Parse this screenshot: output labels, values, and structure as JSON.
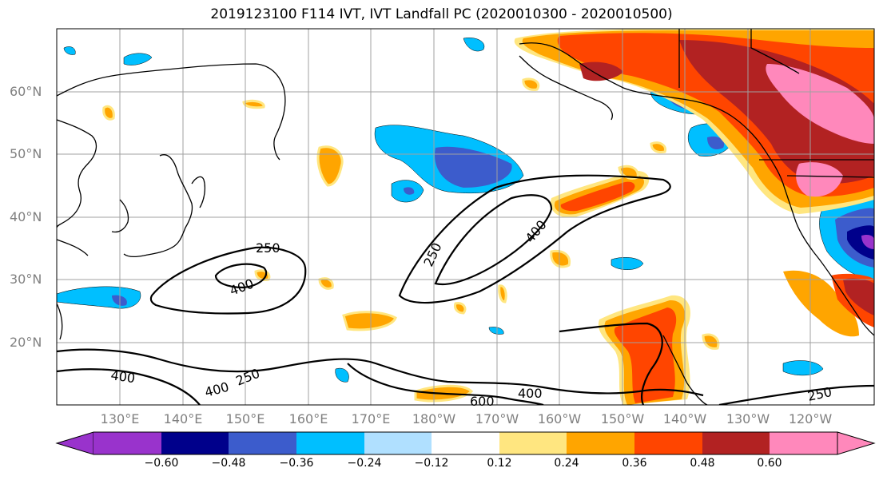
{
  "title": "2019123100 F114 IVT, IVT Landfall PC (2020010300 - 2020010500)",
  "lat_labels": [
    "60°N",
    "50°N",
    "40°N",
    "30°N",
    "20°N"
  ],
  "lon_labels": [
    "130°E",
    "140°E",
    "150°E",
    "160°E",
    "170°E",
    "180°W",
    "170°W",
    "160°W",
    "150°W",
    "140°W",
    "130°W",
    "120°W"
  ],
  "colorbar": {
    "levels": [
      "−0.60",
      "−0.48",
      "−0.36",
      "−0.24",
      "−0.12",
      "0.12",
      "0.24",
      "0.36",
      "0.48",
      "0.60"
    ],
    "colors": [
      "#9933cc",
      "#00008b",
      "#3c5ccc",
      "#00bfff",
      "#b0e0ff",
      "#ffffff",
      "#ffe680",
      "#ffa500",
      "#ff4500",
      "#b22222",
      "#ff88bb"
    ]
  },
  "ivt_contour_labels": [
    "250",
    "400",
    "250",
    "400",
    "400",
    "250",
    "400",
    "600",
    "400",
    "250"
  ],
  "colors": {
    "coast": "#000000",
    "grid": "#a0a0a0",
    "contour": "#000000"
  }
}
